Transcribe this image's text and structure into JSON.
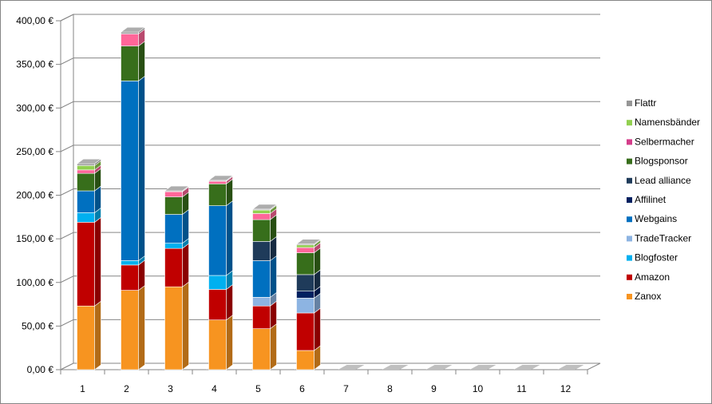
{
  "chart_data": {
    "type": "bar",
    "stacked": true,
    "three_d": true,
    "title": "",
    "xlabel": "",
    "ylabel": "",
    "categories": [
      "1",
      "2",
      "3",
      "4",
      "5",
      "6",
      "7",
      "8",
      "9",
      "10",
      "11",
      "12"
    ],
    "ylim": [
      0,
      400
    ],
    "y_ticks": [
      "0,00 €",
      "50,00 €",
      "100,00 €",
      "150,00 €",
      "200,00 €",
      "250,00 €",
      "300,00 €",
      "350,00 €",
      "400,00 €"
    ],
    "grid": true,
    "legend_position": "right",
    "series": [
      {
        "name": "Zanox",
        "color": "#f79420",
        "values": [
          73,
          91,
          95,
          57,
          47,
          22,
          0,
          0,
          0,
          0,
          0,
          0
        ]
      },
      {
        "name": "Amazon",
        "color": "#c00000",
        "values": [
          96,
          29,
          44,
          35,
          26,
          43,
          0,
          0,
          0,
          0,
          0,
          0
        ]
      },
      {
        "name": "Blogfoster",
        "color": "#00b0f0",
        "values": [
          11,
          5,
          6,
          16,
          0,
          0,
          0,
          0,
          0,
          0,
          0,
          0
        ]
      },
      {
        "name": "TradeTracker",
        "color": "#8db4e2",
        "values": [
          0,
          0,
          0,
          0,
          10,
          17,
          0,
          0,
          0,
          0,
          0,
          0
        ]
      },
      {
        "name": "Webgains",
        "color": "#0070c0",
        "values": [
          25,
          206,
          33,
          80,
          42,
          0,
          0,
          0,
          0,
          0,
          0,
          0
        ]
      },
      {
        "name": "Affilinet",
        "color": "#002060",
        "values": [
          0,
          0,
          0,
          0,
          0,
          8,
          0,
          0,
          0,
          0,
          0,
          0
        ]
      },
      {
        "name": "Lead alliance",
        "color": "#1f3b5a",
        "values": [
          0,
          0,
          0,
          0,
          22,
          19,
          0,
          0,
          0,
          0,
          0,
          0
        ]
      },
      {
        "name": "Blogsponsor",
        "color": "#376e1b",
        "values": [
          20,
          40,
          20,
          25,
          25,
          25,
          0,
          0,
          0,
          0,
          0,
          0
        ]
      },
      {
        "name": "Selbermacher",
        "color": "#d43d8a",
        "values": [
          0,
          0,
          0,
          0,
          0,
          0,
          0,
          0,
          0,
          0,
          0,
          0
        ]
      },
      {
        "name": "Namensbänder",
        "color": "#92d050",
        "values": [
          5,
          0,
          0,
          0,
          4,
          3,
          0,
          0,
          0,
          0,
          0,
          0
        ]
      },
      {
        "name": "Flattr",
        "color": "#969696",
        "values": [
          2,
          2,
          1,
          1,
          1,
          1,
          0,
          0,
          0,
          0,
          0,
          0
        ]
      }
    ],
    "extra_segments_note": "",
    "pink_segment": {
      "color": "#ff6699",
      "values": [
        4,
        14,
        6,
        3,
        7,
        6,
        0,
        0,
        0,
        0,
        0,
        0
      ]
    }
  }
}
